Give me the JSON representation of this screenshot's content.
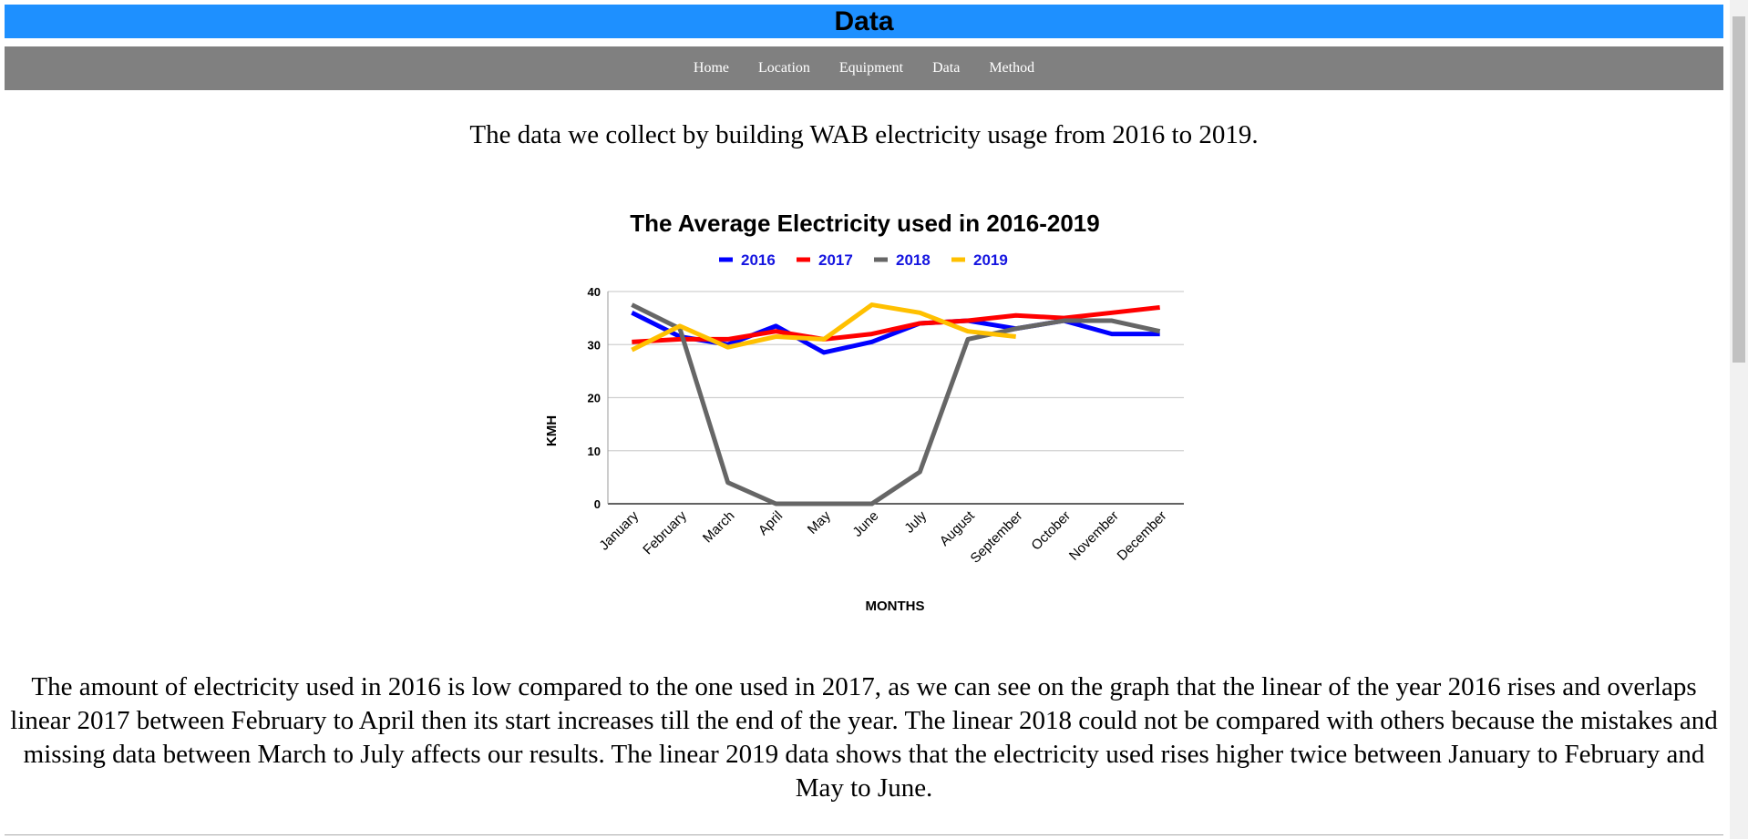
{
  "header": {
    "title": "Data"
  },
  "nav": [
    "Home",
    "Location",
    "Equipment",
    "Data",
    "Method"
  ],
  "intro": "The data we collect by building WAB electricity usage from 2016 to 2019.",
  "chart_data": {
    "type": "line",
    "title": "The Average Electricity used in 2016-2019",
    "x_label": "MONTHS",
    "y_label": "KMH",
    "categories": [
      "January",
      "February",
      "March",
      "April",
      "May",
      "June",
      "July",
      "August",
      "September",
      "October",
      "November",
      "December"
    ],
    "series": [
      {
        "name": "2016",
        "color": "#0000ff",
        "values": [
          36,
          31.5,
          30,
          33.5,
          28.5,
          30.5,
          34,
          34.5,
          33,
          34.5,
          32,
          32
        ]
      },
      {
        "name": "2017",
        "color": "#ff0000",
        "values": [
          30.5,
          31,
          31,
          32.5,
          31,
          32,
          34,
          34.5,
          35.5,
          35,
          36,
          37
        ]
      },
      {
        "name": "2018",
        "color": "#666666",
        "values": [
          37.5,
          33,
          4,
          0,
          0,
          0,
          6,
          31,
          33,
          34.5,
          34.5,
          32.5
        ]
      },
      {
        "name": "2019",
        "color": "#ffc000",
        "values": [
          29,
          33.5,
          29.5,
          31.5,
          31,
          37.5,
          36,
          32.5,
          31.5,
          null,
          null,
          null
        ]
      }
    ],
    "ylim": [
      0,
      40
    ],
    "yticks": [
      0,
      10,
      20,
      30,
      40
    ],
    "grid": true,
    "legend": "top"
  },
  "paragraph": "The amount of electricity used in 2016 is low compared to the one used in 2017, as we can see on the graph that the linear of the year 2016 rises and overlaps linear 2017 between February to April then its start increases till the end of the year. The linear 2018 could not be compared with others because the mistakes and missing data between March to July affects our results. The linear 2019 data shows that the electricity used rises higher twice between January to February and May to June."
}
